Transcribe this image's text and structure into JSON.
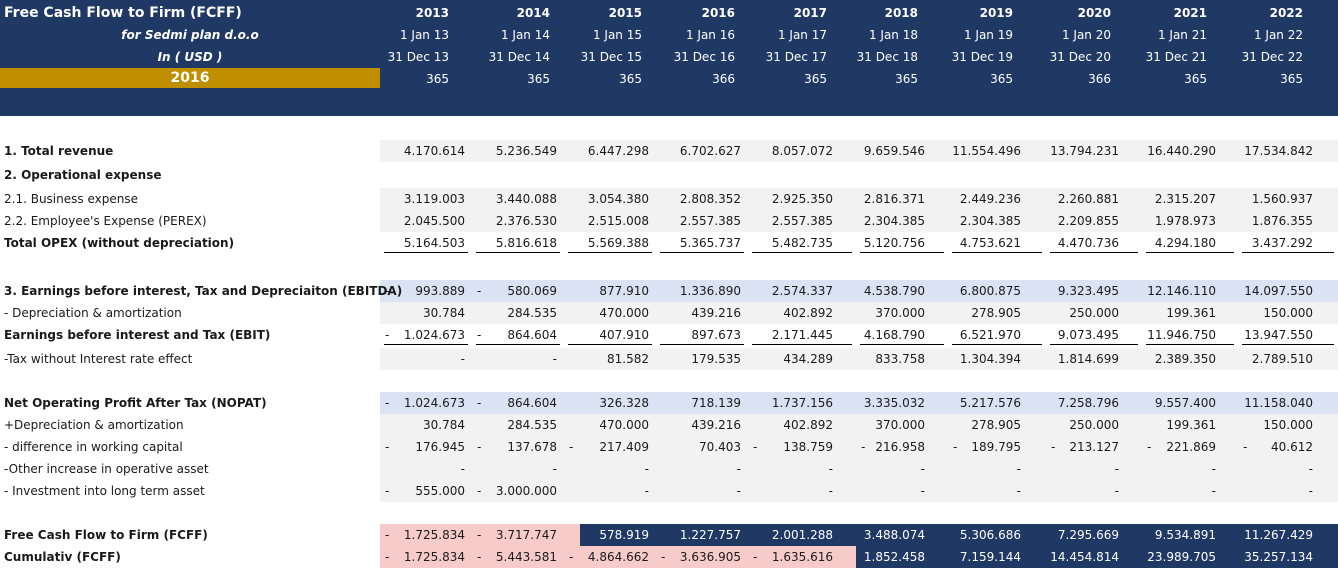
{
  "title": "Free Cash Flow to Firm (FCFF)",
  "company": "for Sedmi plan d.o.o",
  "currency": "In ( USD )",
  "selected_year": "2016",
  "years": [
    "2013",
    "2014",
    "2015",
    "2016",
    "2017",
    "2018",
    "2019",
    "2020",
    "2021",
    "2022"
  ],
  "period_start": [
    "1 Jan 13",
    "1 Jan 14",
    "1 Jan 15",
    "1 Jan 16",
    "1 Jan 17",
    "1 Jan 18",
    "1 Jan 19",
    "1 Jan 20",
    "1 Jan 21",
    "1 Jan 22"
  ],
  "period_end": [
    "31 Dec 13",
    "31 Dec 14",
    "31 Dec 15",
    "31 Dec 16",
    "31 Dec 17",
    "31 Dec 18",
    "31 Dec 19",
    "31 Dec 20",
    "31 Dec 21",
    "31 Dec 22"
  ],
  "days": [
    "365",
    "365",
    "365",
    "366",
    "365",
    "365",
    "365",
    "366",
    "365",
    "365"
  ],
  "colors": {
    "navy": "#203864",
    "gold": "#bf8f00",
    "light_gray": "#f2f2f2",
    "light_blue": "#dae3f3",
    "pink": "#f8cbcb"
  },
  "rows": [
    {
      "label": "1. Total revenue",
      "bold": true,
      "style": "gray",
      "values": [
        "4.170.614",
        "5.236.549",
        "6.447.298",
        "6.702.627",
        "8.057.072",
        "9.659.546",
        "11.554.496",
        "13.794.231",
        "16.440.290",
        "17.534.842"
      ],
      "neg": []
    },
    {
      "label": "2. Operational expense",
      "bold": true,
      "style": "none",
      "values": [],
      "neg": []
    },
    {
      "label": "2.1. Business expense",
      "bold": false,
      "style": "gray",
      "values": [
        "3.119.003",
        "3.440.088",
        "3.054.380",
        "2.808.352",
        "2.925.350",
        "2.816.371",
        "2.449.236",
        "2.260.881",
        "2.315.207",
        "1.560.937"
      ],
      "neg": []
    },
    {
      "label": "2.2. Employee's Expense (PEREX)",
      "bold": false,
      "style": "gray",
      "values": [
        "2.045.500",
        "2.376.530",
        "2.515.008",
        "2.557.385",
        "2.557.385",
        "2.304.385",
        "2.304.385",
        "2.209.855",
        "1.978.973",
        "1.876.355"
      ],
      "neg": []
    },
    {
      "label": "Total OPEX (without depreciation)",
      "bold": true,
      "style": "underline",
      "values": [
        "5.164.503",
        "5.816.618",
        "5.569.388",
        "5.365.737",
        "5.482.735",
        "5.120.756",
        "4.753.621",
        "4.470.736",
        "4.294.180",
        "3.437.292"
      ],
      "neg": []
    },
    {
      "label": "",
      "bold": false,
      "style": "none",
      "values": [],
      "neg": []
    },
    {
      "label": "3. Earnings before interest, Tax and Depreciaiton (EBITDA)",
      "bold": true,
      "style": "blue",
      "values": [
        "993.889",
        "580.069",
        "877.910",
        "1.336.890",
        "2.574.337",
        "4.538.790",
        "6.800.875",
        "9.323.495",
        "12.146.110",
        "14.097.550"
      ],
      "neg": [
        0,
        1
      ]
    },
    {
      "label": "- Depreciation & amortization",
      "bold": false,
      "style": "gray",
      "values": [
        "30.784",
        "284.535",
        "470.000",
        "439.216",
        "402.892",
        "370.000",
        "278.905",
        "250.000",
        "199.361",
        "150.000"
      ],
      "neg": []
    },
    {
      "label": "Earnings before interest and Tax (EBIT)",
      "bold": true,
      "style": "underline",
      "values": [
        "1.024.673",
        "864.604",
        "407.910",
        "897.673",
        "2.171.445",
        "4.168.790",
        "6.521.970",
        "9.073.495",
        "11.946.750",
        "13.947.550"
      ],
      "neg": [
        0,
        1
      ]
    },
    {
      "label": "-Tax without Interest rate effect",
      "bold": false,
      "style": "gray",
      "values": [
        "-",
        "-",
        "81.582",
        "179.535",
        "434.289",
        "833.758",
        "1.304.394",
        "1.814.699",
        "2.389.350",
        "2.789.510"
      ],
      "neg": []
    },
    {
      "label": "",
      "bold": false,
      "style": "none",
      "values": [],
      "neg": []
    },
    {
      "label": "Net Operating Profit After Tax (NOPAT)",
      "bold": true,
      "style": "blue",
      "values": [
        "1.024.673",
        "864.604",
        "326.328",
        "718.139",
        "1.737.156",
        "3.335.032",
        "5.217.576",
        "7.258.796",
        "9.557.400",
        "11.158.040"
      ],
      "neg": [
        0,
        1
      ]
    },
    {
      "label": "+Depreciation & amortization",
      "bold": false,
      "style": "gray",
      "values": [
        "30.784",
        "284.535",
        "470.000",
        "439.216",
        "402.892",
        "370.000",
        "278.905",
        "250.000",
        "199.361",
        "150.000"
      ],
      "neg": []
    },
    {
      "label": " - difference in working capital",
      "bold": false,
      "style": "gray",
      "values": [
        "176.945",
        "137.678",
        "217.409",
        "70.403",
        "138.759",
        "216.958",
        "189.795",
        "213.127",
        "221.869",
        "40.612"
      ],
      "neg": [
        0,
        1,
        2,
        4,
        5,
        6,
        7,
        8,
        9
      ]
    },
    {
      "label": "-Other increase in operative asset",
      "bold": false,
      "style": "gray",
      "values": [
        "-",
        "-",
        "-",
        "-",
        "-",
        "-",
        "-",
        "-",
        "-",
        "-"
      ],
      "neg": []
    },
    {
      "label": "- Investment into long term asset",
      "bold": false,
      "style": "gray",
      "values": [
        "555.000",
        "3.000.000",
        "-",
        "-",
        "-",
        "-",
        "-",
        "-",
        "-",
        "-"
      ],
      "neg": [
        0,
        1
      ]
    },
    {
      "label": "",
      "bold": false,
      "style": "none",
      "values": [],
      "neg": []
    },
    {
      "label": "Free Cash Flow to Firm (FCFF)",
      "bold": true,
      "style": "fcff",
      "values": [
        "1.725.834",
        "3.717.747",
        "578.919",
        "1.227.757",
        "2.001.288",
        "3.488.074",
        "5.306.686",
        "7.295.669",
        "9.534.891",
        "11.267.429"
      ],
      "neg": [
        0,
        1
      ]
    },
    {
      "label": "Cumulativ (FCFF)",
      "bold": true,
      "style": "cum",
      "values": [
        "1.725.834",
        "5.443.581",
        "4.864.662",
        "3.636.905",
        "1.635.616",
        "1.852.458",
        "7.159.144",
        "14.454.814",
        "23.989.705",
        "35.257.134"
      ],
      "neg": [
        0,
        1,
        2,
        3,
        4
      ]
    }
  ]
}
